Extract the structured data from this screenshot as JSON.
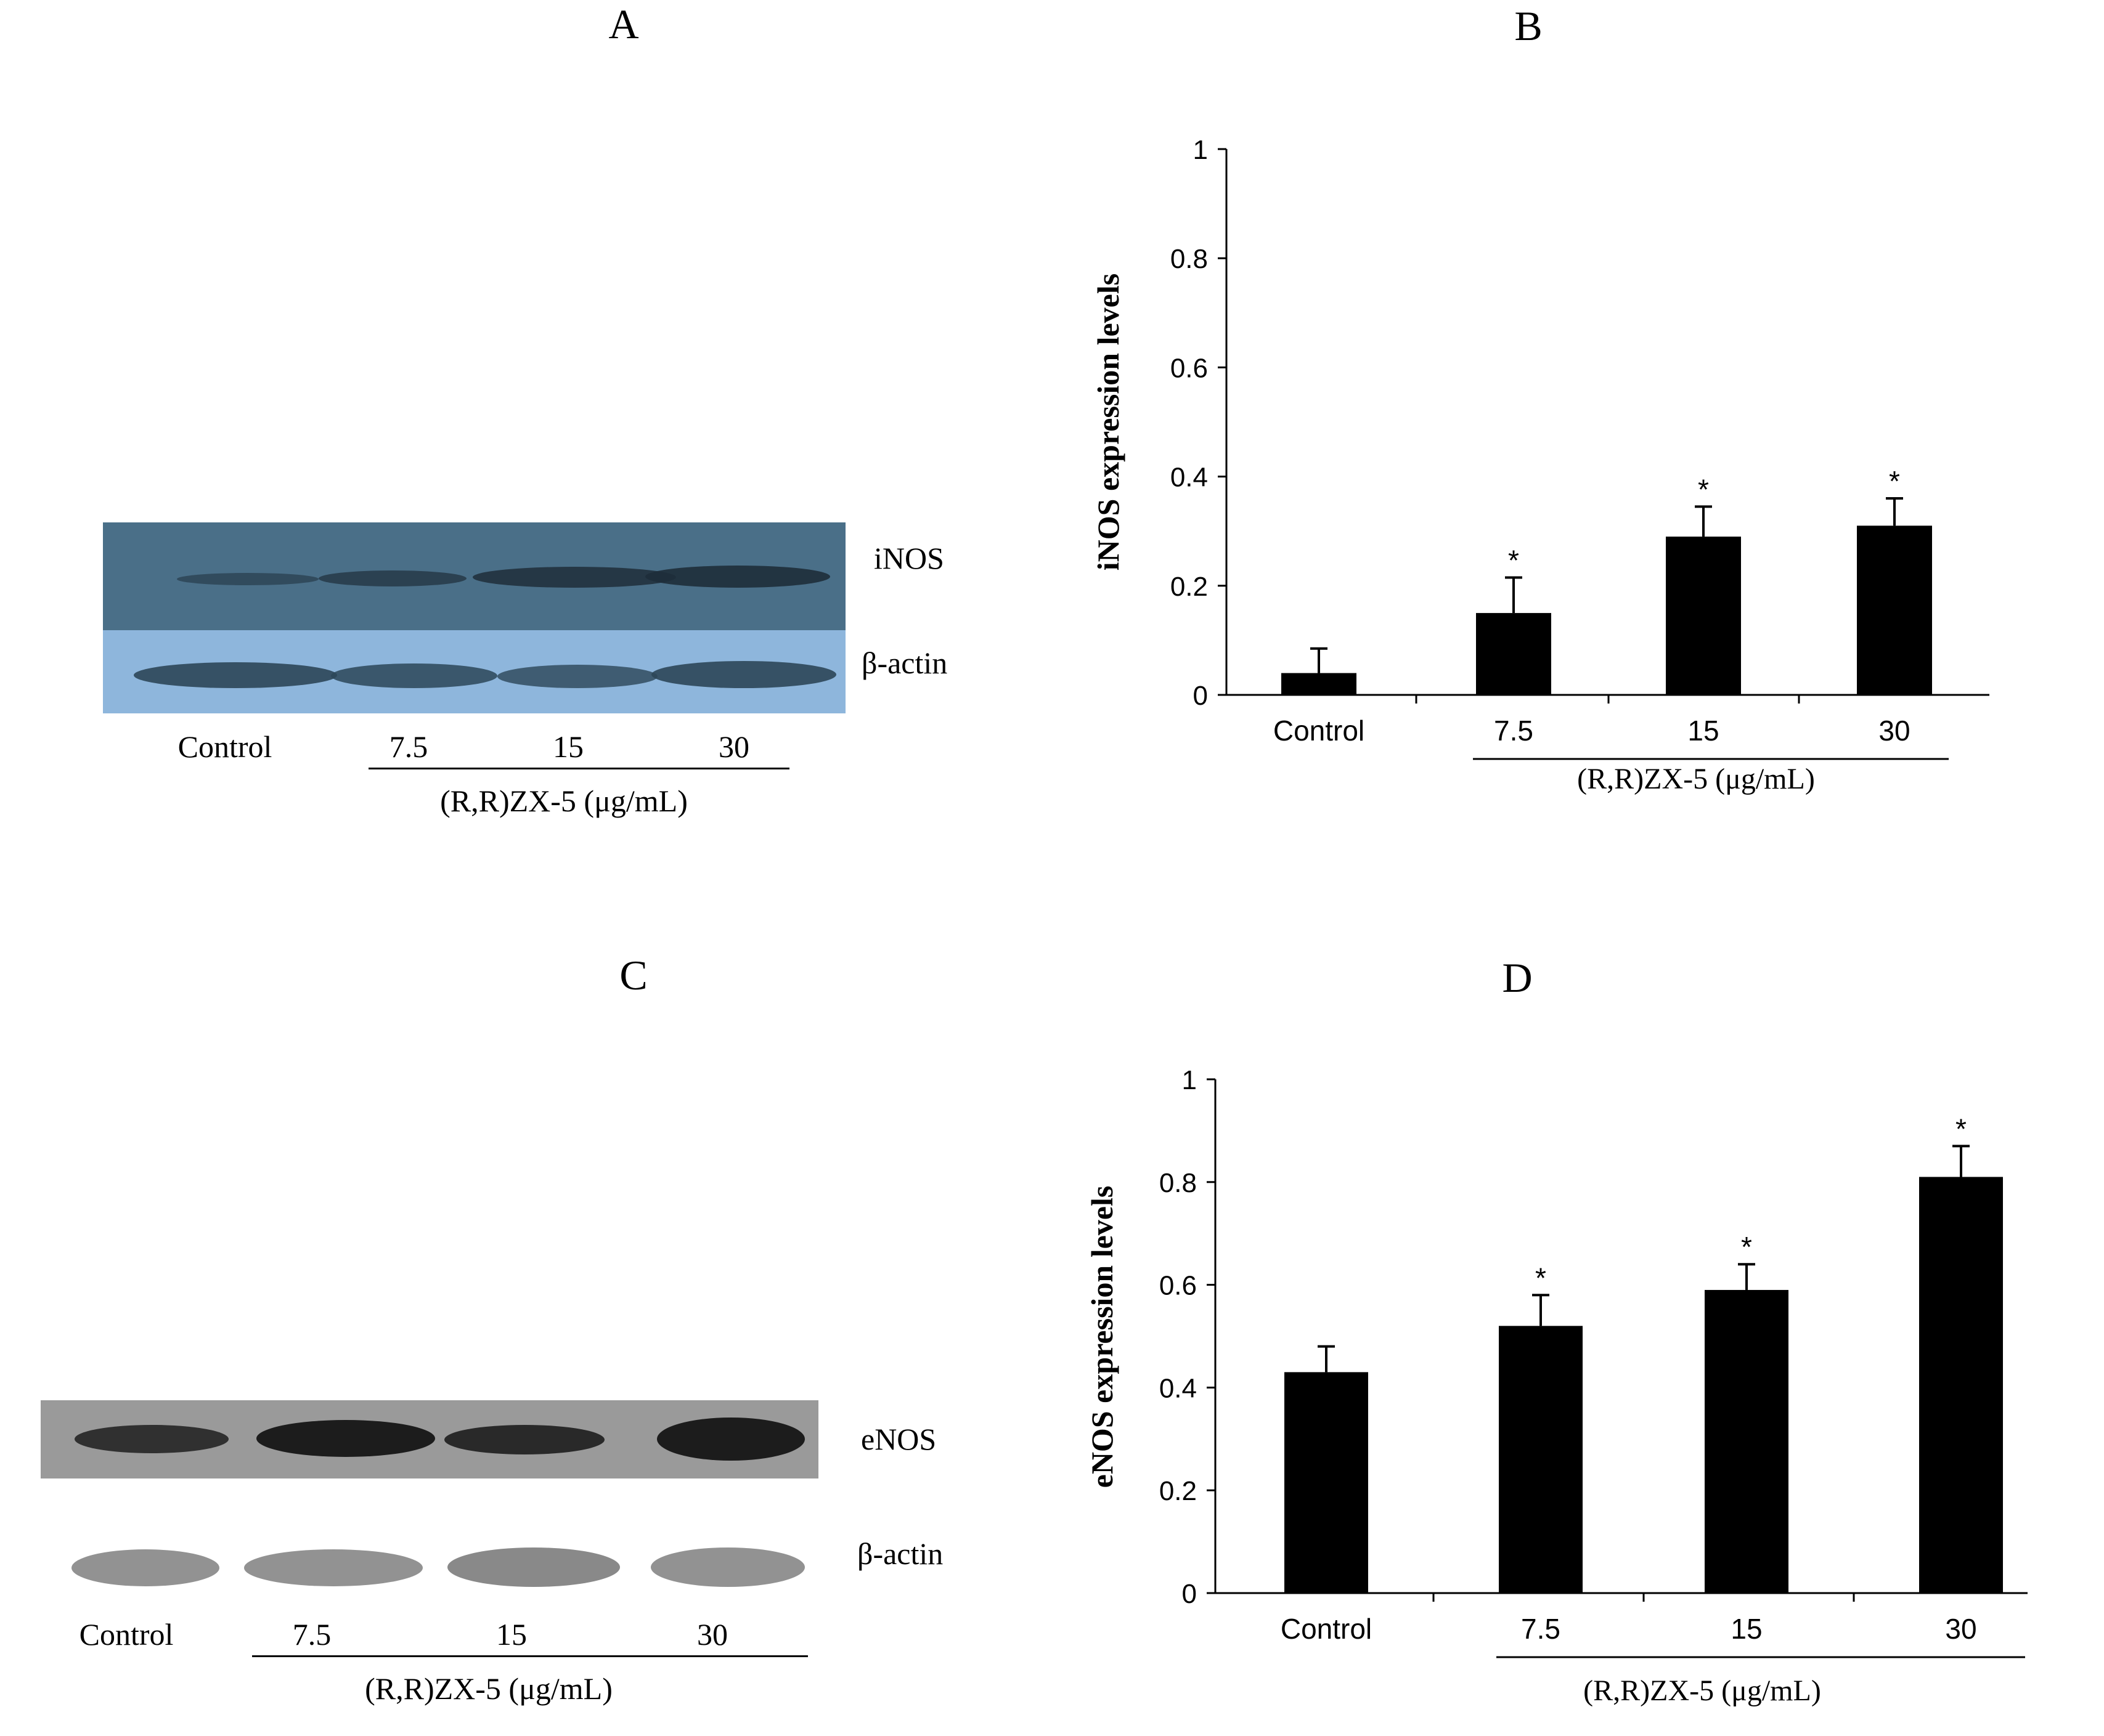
{
  "panels": {
    "A": {
      "letter": "A",
      "blot_labels": [
        "iNOS",
        "β-actin"
      ],
      "lanes": [
        "Control",
        "7.5",
        "15",
        "30"
      ],
      "treatment": "(R,R)ZX-5 (μg/mL)",
      "colors": {
        "top_membrane": "#4a6f88",
        "bottom_membrane": "#8eb6dc",
        "band": "#1e2e3a"
      }
    },
    "C": {
      "letter": "C",
      "blot_labels": [
        "eNOS",
        "β-actin"
      ],
      "lanes": [
        "Control",
        "7.5",
        "15",
        "30"
      ],
      "treatment": "(R,R)ZX-5 (μg/mL)",
      "colors": {
        "top_membrane": "#9a9a9a",
        "bottom_membrane": "#cfcfcf",
        "band": "#151515"
      }
    }
  },
  "chart_data": [
    {
      "panel": "B",
      "type": "bar",
      "title": "B",
      "ylabel": "iNOS expression levels",
      "xlabel": "(R,R)ZX-5 (μg/mL)",
      "categories": [
        "Control",
        "7.5",
        "15",
        "30"
      ],
      "values": [
        0.04,
        0.15,
        0.29,
        0.31
      ],
      "errors": [
        0.045,
        0.065,
        0.055,
        0.05
      ],
      "significance": [
        "",
        "*",
        "*",
        "*"
      ],
      "ylim": [
        0,
        1
      ],
      "yticks": [
        "0",
        "0.2",
        "0.4",
        "0.6",
        "0.8",
        "1"
      ],
      "bar_color": "#000000"
    },
    {
      "panel": "D",
      "type": "bar",
      "title": "D",
      "ylabel": "eNOS expression levels",
      "xlabel": "(R,R)ZX-5 (μg/mL)",
      "categories": [
        "Control",
        "7.5",
        "15",
        "30"
      ],
      "values": [
        0.43,
        0.52,
        0.59,
        0.81
      ],
      "errors": [
        0.05,
        0.06,
        0.05,
        0.06
      ],
      "significance": [
        "",
        "*",
        "*",
        "*"
      ],
      "ylim": [
        0,
        1
      ],
      "yticks": [
        "0",
        "0.2",
        "0.4",
        "0.6",
        "0.8",
        "1"
      ],
      "bar_color": "#000000"
    }
  ]
}
